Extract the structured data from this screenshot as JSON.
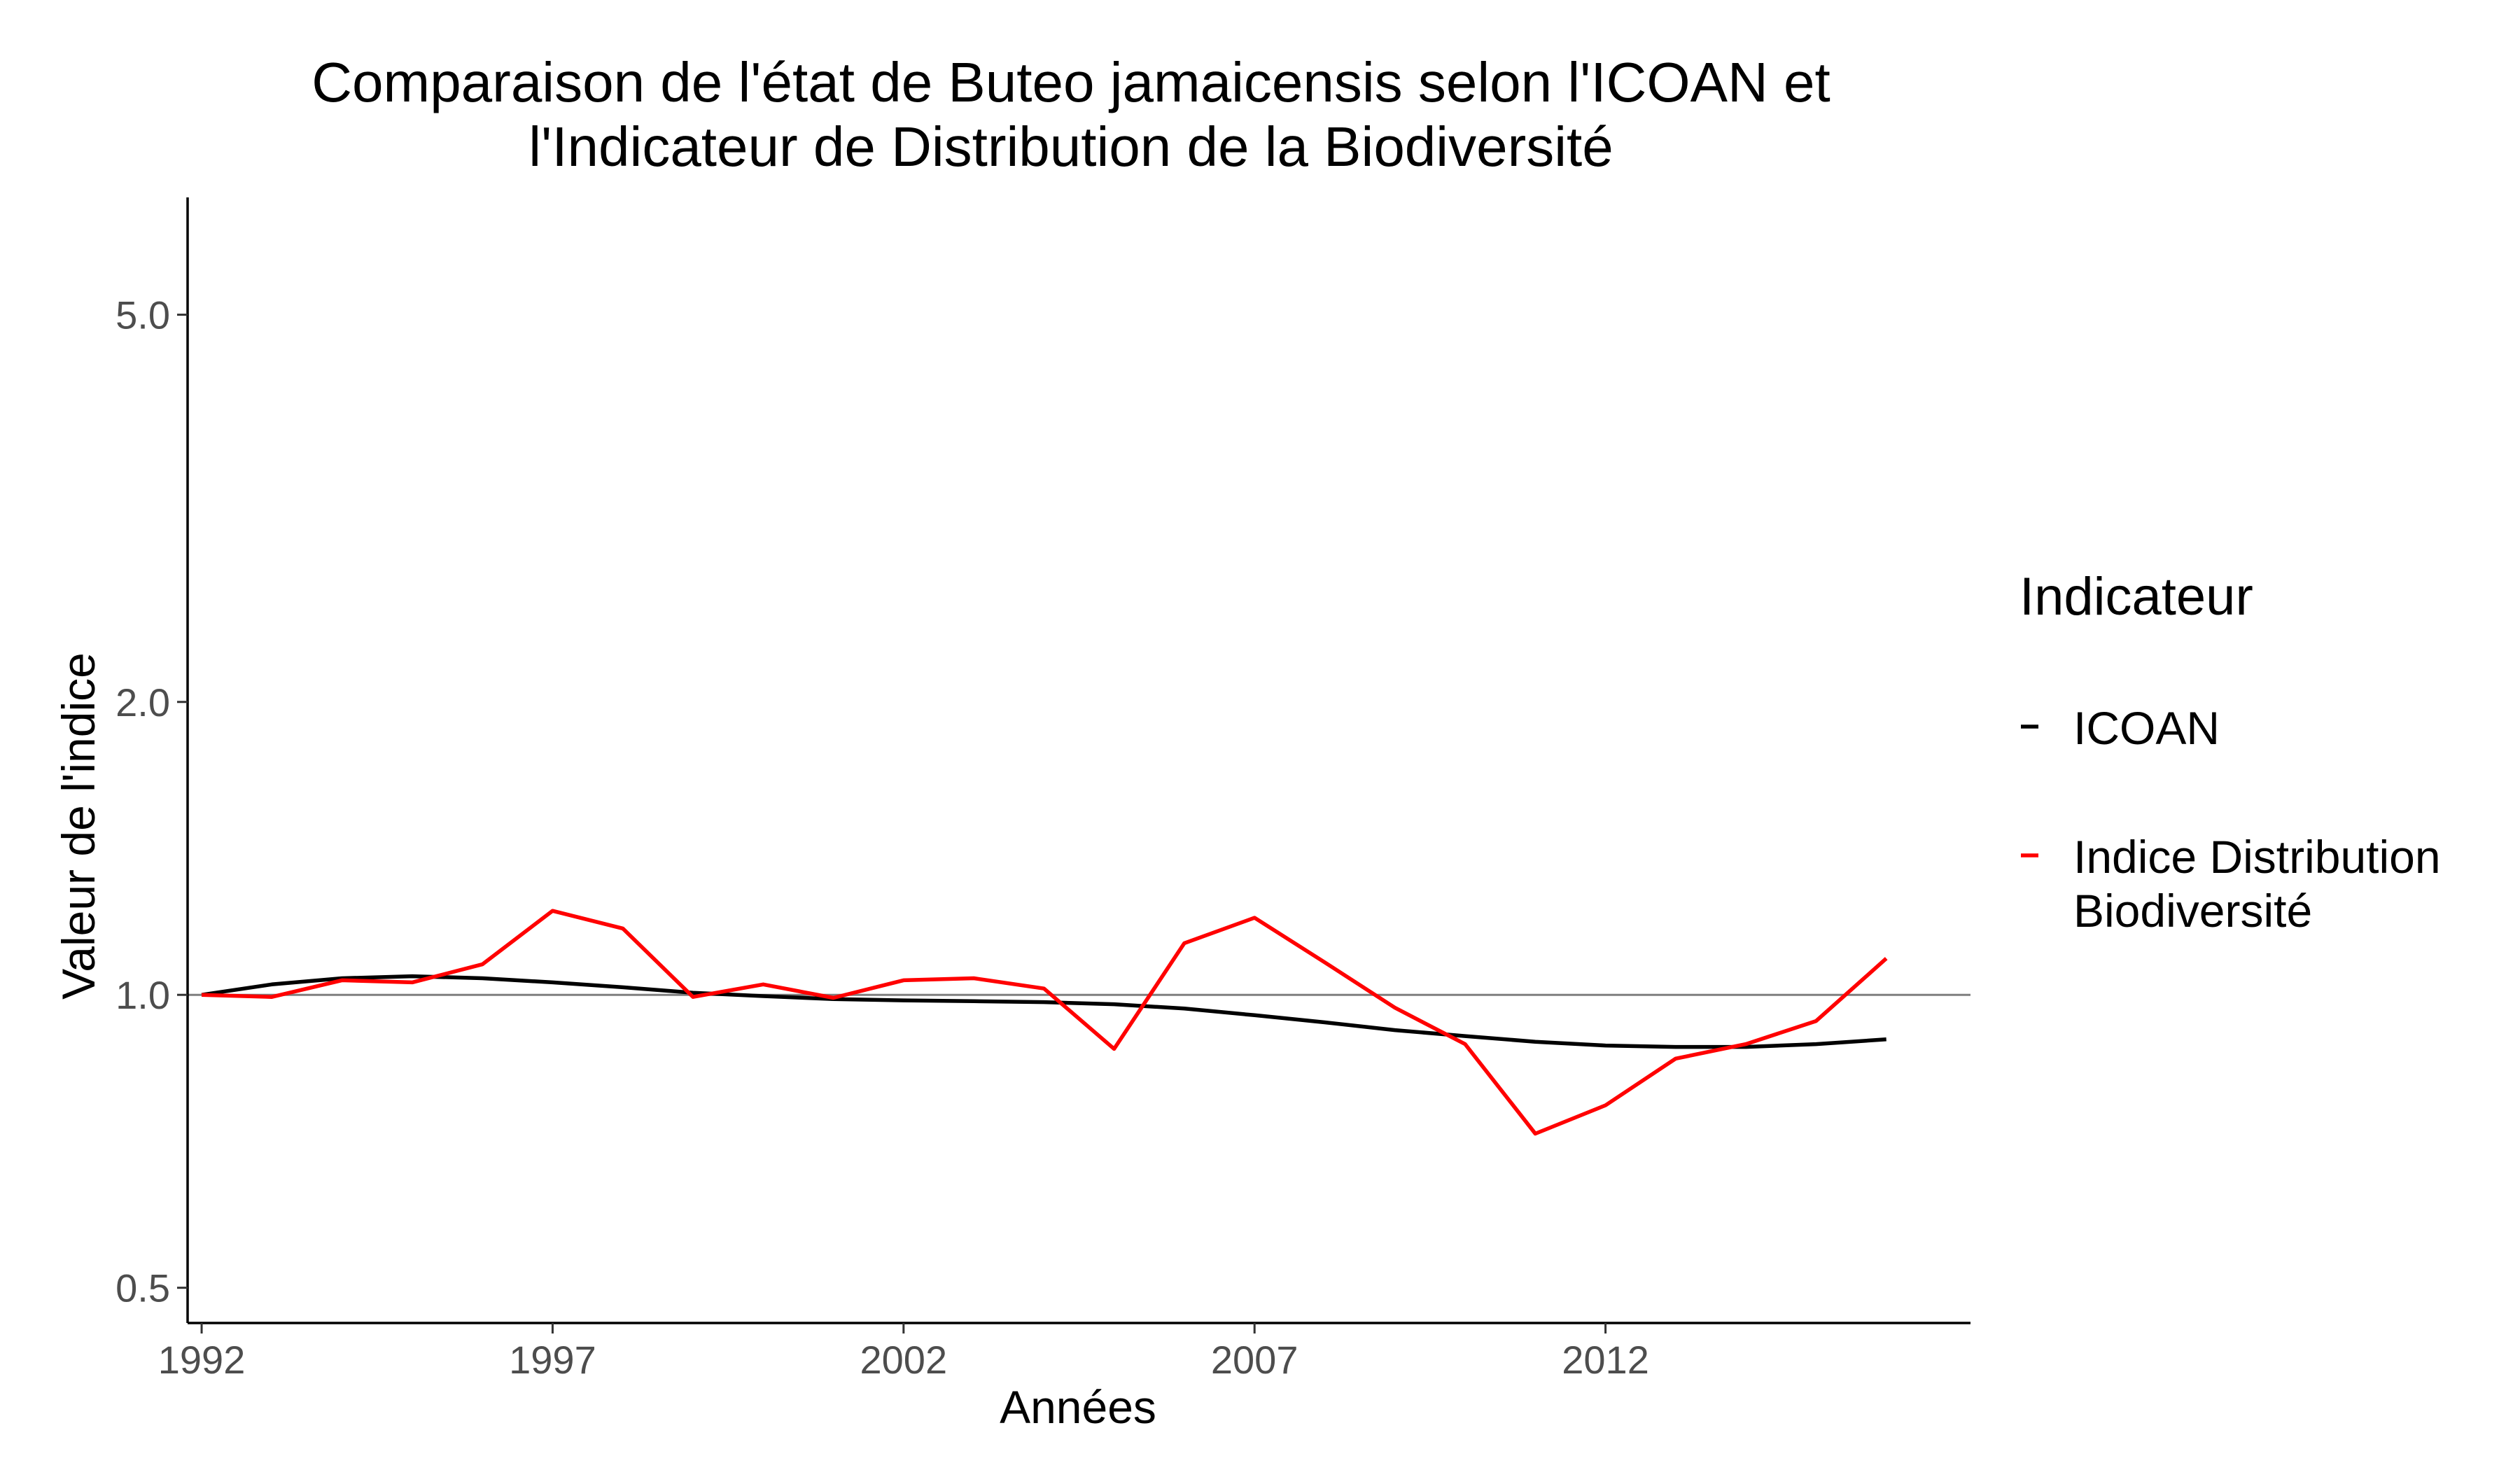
{
  "chart_data": {
    "type": "line",
    "title_lines": [
      "Comparaison de l'état de Buteo jamaicensis selon l'ICOAN et",
      "l'Indicateur de Distribution de la Biodiversité"
    ],
    "xlabel": "Années",
    "ylabel": "Valeur de l'indice",
    "x": [
      1992,
      1993,
      1994,
      1995,
      1996,
      1997,
      1998,
      1999,
      2000,
      2001,
      2002,
      2003,
      2004,
      2005,
      2006,
      2007,
      2008,
      2009,
      2010,
      2011,
      2012,
      2013,
      2014,
      2015,
      2016
    ],
    "x_ticks": [
      1992,
      1997,
      2002,
      2007,
      2012
    ],
    "x_tick_labels": [
      "1992",
      "1997",
      "2002",
      "2007",
      "2012"
    ],
    "xlim": [
      1991.8,
      2017.2
    ],
    "y_scale": "log",
    "y_ticks": [
      0.5,
      1.0,
      2.0,
      5.0
    ],
    "y_tick_labels": [
      "0.5",
      "1.0",
      "2.0",
      "5.0"
    ],
    "ylim": [
      0.46,
      6.6
    ],
    "reference_line": 1.0,
    "grid": false,
    "series": [
      {
        "name": "ICOAN",
        "color": "#000000",
        "values": [
          1.0,
          1.025,
          1.04,
          1.045,
          1.04,
          1.03,
          1.018,
          1.005,
          0.997,
          0.99,
          0.987,
          0.985,
          0.983,
          0.978,
          0.968,
          0.953,
          0.937,
          0.92,
          0.907,
          0.895,
          0.887,
          0.884,
          0.884,
          0.89,
          0.9
        ]
      },
      {
        "name": "Indice Distribution Biodiversité",
        "color": "#ff0000",
        "values": [
          1.0,
          0.995,
          1.035,
          1.03,
          1.075,
          1.22,
          1.17,
          0.995,
          1.025,
          0.993,
          1.035,
          1.04,
          1.015,
          0.88,
          1.13,
          1.2,
          1.08,
          0.97,
          0.89,
          0.72,
          0.77,
          0.86,
          0.89,
          0.94,
          1.09
        ]
      }
    ],
    "legend": {
      "title": "Indicateur",
      "position": "right",
      "entries": [
        {
          "lines": [
            "ICOAN"
          ],
          "color": "#000000"
        },
        {
          "lines": [
            "Indice Distribution",
            "Biodiversité"
          ],
          "color": "#ff0000"
        }
      ]
    }
  }
}
